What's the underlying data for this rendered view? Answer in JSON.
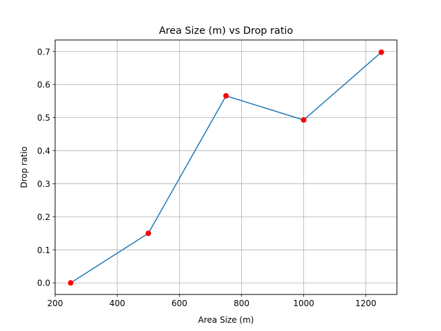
{
  "chart_data": {
    "type": "line",
    "title": "Area Size (m) vs Drop ratio",
    "xlabel": "Area Size (m)",
    "ylabel": "Drop ratio",
    "xlim": [
      200,
      1300
    ],
    "ylim": [
      -0.035,
      0.735
    ],
    "xticks": [
      200,
      400,
      600,
      800,
      1000,
      1200
    ],
    "xtick_labels": [
      "200",
      "400",
      "600",
      "800",
      "1000",
      "1200"
    ],
    "yticks": [
      0.0,
      0.1,
      0.2,
      0.3,
      0.4,
      0.5,
      0.6,
      0.7
    ],
    "ytick_labels": [
      "0.0",
      "0.1",
      "0.2",
      "0.3",
      "0.4",
      "0.5",
      "0.6",
      "0.7"
    ],
    "grid": true,
    "series": [
      {
        "x": [
          250,
          500,
          750,
          1000,
          1250
        ],
        "y": [
          0.0,
          0.15,
          0.566,
          0.493,
          0.698
        ],
        "line_color": "#1f77b4",
        "marker_color": "#ff0000"
      }
    ]
  }
}
